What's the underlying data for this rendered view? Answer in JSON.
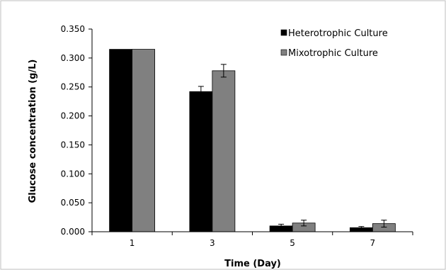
{
  "chart_data": {
    "type": "bar",
    "title": "",
    "xlabel": "Time (Day)",
    "ylabel": "Glucose concentration (g/L)",
    "categories": [
      "1",
      "3",
      "5",
      "7"
    ],
    "ylim": [
      0,
      0.35
    ],
    "yticks": [
      "0.000",
      "0.050",
      "0.100",
      "0.150",
      "0.200",
      "0.250",
      "0.300",
      "0.350"
    ],
    "grid": false,
    "legend_position": "top-right",
    "series": [
      {
        "name": "Heterotrophic Culture",
        "color": "#000000",
        "values": [
          0.315,
          0.242,
          0.01,
          0.007
        ],
        "errors": [
          0.0,
          0.009,
          0.003,
          0.002
        ]
      },
      {
        "name": "Mixotrophic Culture",
        "color": "#808080",
        "values": [
          0.315,
          0.278,
          0.015,
          0.014
        ],
        "errors": [
          0.0,
          0.011,
          0.005,
          0.006
        ]
      }
    ]
  }
}
